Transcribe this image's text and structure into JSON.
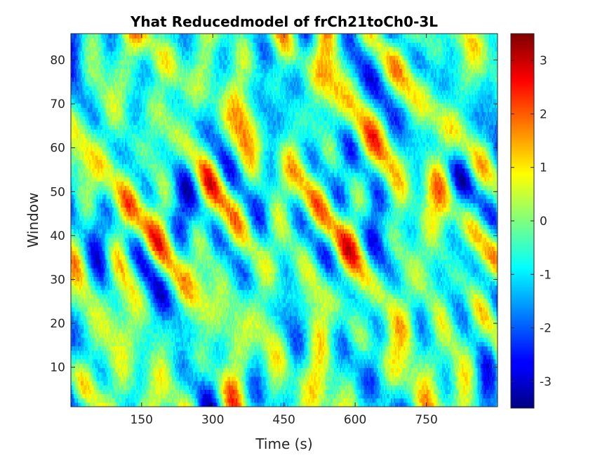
{
  "chart_data": {
    "type": "heatmap",
    "title": "Yhat Reducedmodel of frCh21toCh0-3L",
    "xlabel": "Time (s)",
    "ylabel": "Window",
    "x_range": [
      1,
      900
    ],
    "y_range": [
      1,
      86
    ],
    "x_ticks": [
      150,
      300,
      450,
      600,
      750
    ],
    "y_ticks": [
      10,
      20,
      30,
      40,
      50,
      60,
      70,
      80
    ],
    "colormap": "jet",
    "color_limits": [
      -3.5,
      3.5
    ],
    "colorbar_ticks": [
      -3,
      -2,
      -1,
      0,
      1,
      2,
      3
    ],
    "colorbar_location": "right",
    "grid": false
  }
}
